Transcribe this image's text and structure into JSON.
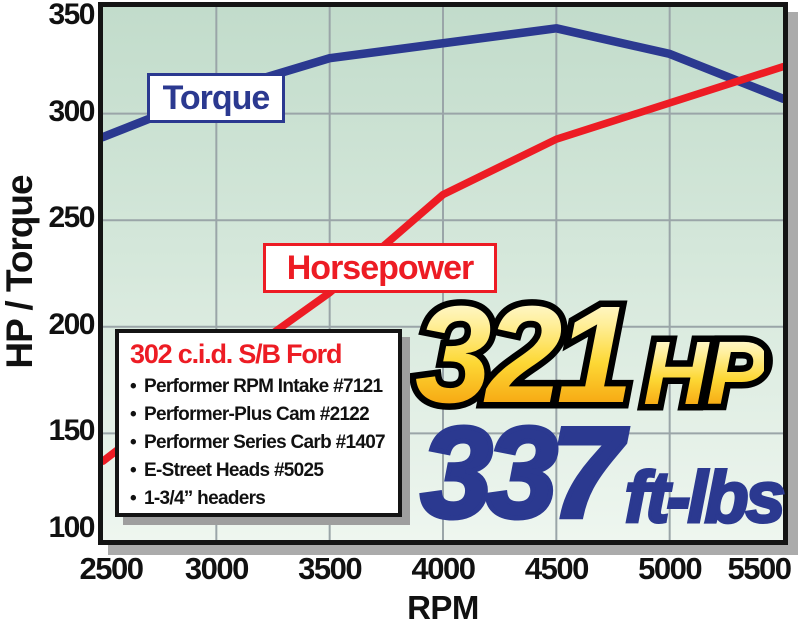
{
  "chart_data": {
    "type": "line",
    "x": [
      2500,
      3000,
      3500,
      4000,
      4500,
      5000,
      5500
    ],
    "series": [
      {
        "name": "Torque",
        "color": "#2b3990",
        "stroke_width": 8.5,
        "values": [
          289,
          310,
          326,
          333,
          340,
          328,
          307
        ]
      },
      {
        "name": "Horsepower",
        "color": "#ed1c24",
        "stroke_width": 7.5,
        "values": [
          137,
          178,
          216,
          262,
          288,
          305,
          322
        ]
      }
    ],
    "title": "",
    "xlabel": "RPM",
    "ylabel": "HP / Torque",
    "x_ticks": [
      2500,
      3000,
      3500,
      4000,
      4500,
      5000,
      5500
    ],
    "y_ticks": [
      100,
      150,
      200,
      250,
      300,
      350
    ],
    "xlim": [
      2500,
      5500
    ],
    "ylim": [
      100,
      350
    ],
    "grid": true,
    "gridline_color": "#9aa5a8",
    "legend_position": "boxed labels on chart",
    "annotations": {
      "peak_hp": {
        "value": "321",
        "unit": "HP"
      },
      "peak_torque": {
        "value": "337",
        "unit": "ft-lbs"
      }
    }
  },
  "spec_box": {
    "title": "302 c.i.d. S/B Ford",
    "bullet_glyph": "•",
    "items": [
      "Performer RPM Intake #7121",
      "Performer-Plus Cam #2122",
      "Performer Series Carb #1407",
      "E-Street Heads #5025",
      "1-3/4” headers"
    ]
  },
  "colors": {
    "torque_blue": "#2b3990",
    "horsepower_red": "#ed1c24",
    "plot_bg_top": "#c2dccb",
    "plot_bg_bottom": "#eef6ef",
    "axis_border": "#141414",
    "shadow_gray": "#ababab",
    "hp_number_gradient_top": "#fffef2",
    "hp_number_gradient_bottom": "#ef8a05"
  }
}
